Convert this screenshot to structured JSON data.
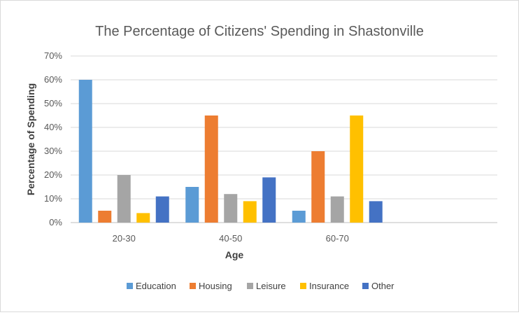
{
  "chart_data": {
    "type": "bar",
    "title": "The Percentage of Citizens' Spending in Shastonville",
    "xlabel": "Age",
    "ylabel": "Percentage of Spending",
    "categories": [
      "20-30",
      "40-50",
      "60-70",
      ""
    ],
    "ylim": [
      0,
      70
    ],
    "ytick_values": [
      0,
      10,
      20,
      30,
      40,
      50,
      60,
      70
    ],
    "ytick_labels": [
      "0%",
      "10%",
      "20%",
      "30%",
      "40%",
      "50%",
      "60%",
      "70%"
    ],
    "grid": true,
    "legend_position": "bottom",
    "series": [
      {
        "name": "Education",
        "color": "#5B9BD5",
        "values": [
          60,
          15,
          5,
          null
        ]
      },
      {
        "name": "Housing",
        "color": "#ED7D31",
        "values": [
          5,
          45,
          30,
          null
        ]
      },
      {
        "name": "Leisure",
        "color": "#A5A5A5",
        "values": [
          20,
          12,
          11,
          null
        ]
      },
      {
        "name": "Insurance",
        "color": "#FFC000",
        "values": [
          4,
          9,
          45,
          null
        ]
      },
      {
        "name": "Other",
        "color": "#4472C4",
        "values": [
          11,
          19,
          9,
          null
        ]
      }
    ]
  }
}
